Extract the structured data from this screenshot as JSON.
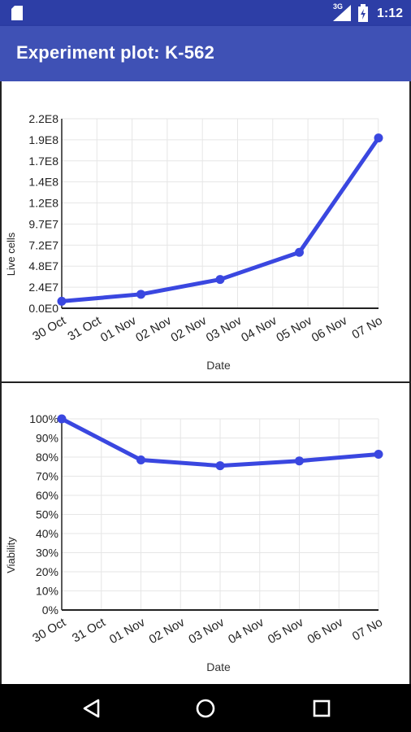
{
  "status_bar": {
    "network_label": "3G",
    "time": "1:12"
  },
  "app_bar": {
    "title": "Experiment plot: K-562"
  },
  "icons": {
    "sd": "sd-card-icon",
    "signal": "signal-icon",
    "battery": "battery-icon",
    "back": "back-triangle-icon",
    "home": "home-circle-icon",
    "recents": "recents-square-icon"
  },
  "colors": {
    "status_bar": "#2d3ea6",
    "app_bar": "#3f51b5",
    "line": "#3a47e0",
    "grid": "#e6e6e6",
    "axis": "#222222"
  },
  "chart_data": [
    {
      "type": "line",
      "xlabel": "Date",
      "ylabel": "Live cells",
      "x_tick_labels": [
        "30 Oct",
        "31 Oct",
        "01 Nov",
        "02 Nov",
        "02 Nov",
        "03 Nov",
        "04 Nov",
        "05 Nov",
        "06 Nov",
        "07 No"
      ],
      "y_tick_labels": [
        "0.0E0",
        "2.4E7",
        "4.8E7",
        "7.2E7",
        "9.7E7",
        "1.2E8",
        "1.4E8",
        "1.7E8",
        "1.9E8",
        "2.2E8"
      ],
      "ylim": [
        0,
        217000000
      ],
      "grid": true,
      "series": [
        {
          "x": [
            "2014-10-30",
            "2014-11-01",
            "2014-11-03",
            "2014-11-05",
            "2014-11-07"
          ],
          "values": [
            8000000,
            16000000,
            33000000,
            64000000,
            195000000
          ]
        }
      ]
    },
    {
      "type": "line",
      "xlabel": "Date",
      "ylabel": "Viability",
      "x_tick_labels": [
        "30 Oct",
        "31 Oct",
        "01 Nov",
        "02 Nov",
        "03 Nov",
        "04 Nov",
        "05 Nov",
        "06 Nov",
        "07 No"
      ],
      "y_tick_labels": [
        "0%",
        "10%",
        "20%",
        "30%",
        "40%",
        "50%",
        "60%",
        "70%",
        "80%",
        "90%",
        "100%"
      ],
      "ylim": [
        0,
        100
      ],
      "grid": true,
      "series": [
        {
          "x": [
            "2014-10-30",
            "2014-11-01",
            "2014-11-03",
            "2014-11-05",
            "2014-11-07"
          ],
          "values": [
            100,
            78.5,
            75.5,
            78,
            81.5
          ]
        }
      ]
    }
  ]
}
